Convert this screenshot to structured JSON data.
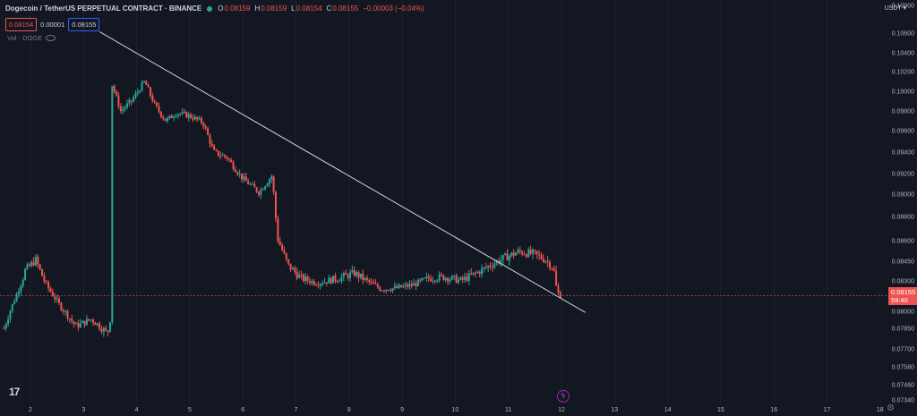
{
  "header": {
    "title": "Dogecoin / TetherUS PERPETUAL CONTRACT · BINANCE",
    "ohlc": [
      {
        "key": "O",
        "value": "0.08159"
      },
      {
        "key": "H",
        "value": "0.08159"
      },
      {
        "key": "L",
        "value": "0.08154"
      },
      {
        "key": "C",
        "value": "0.08155"
      },
      {
        "key": "",
        "value": "−0.00003 (−0.04%)"
      }
    ],
    "sell_price": "0.08154",
    "spread": "0.00001",
    "buy_price": "0.08155",
    "volume_label": "Vol · DOGE"
  },
  "currency": "USDT",
  "last_price": {
    "price": "0.08155",
    "countdown": "59:40"
  },
  "colors": {
    "up": "#26a69a",
    "down": "#ef5350",
    "background": "#131722",
    "trendline": "#d1d4dc",
    "price_line": "#ef5350"
  },
  "chart_data": {
    "type": "candlestick",
    "y_ticks": [
      "0.10800",
      "0.10600",
      "0.10400",
      "0.10200",
      "0.10000",
      "0.09800",
      "0.09600",
      "0.09400",
      "0.09200",
      "0.09000",
      "0.08800",
      "0.08600",
      "0.08450",
      "0.08300",
      "0.08000",
      "0.07850",
      "0.07700",
      "0.07580",
      "0.07460",
      "0.07340"
    ],
    "x_ticks": [
      "2",
      "3",
      "4",
      "5",
      "6",
      "7",
      "8",
      "9",
      "10",
      "11",
      "12",
      "13",
      "14",
      "15",
      "16",
      "17",
      "18"
    ],
    "ylim": [
      0.0734,
      0.108
    ],
    "last_price": 0.08155,
    "trendline": {
      "start": {
        "day": 3.3,
        "price": 0.1061
      },
      "end": {
        "day": 12.45,
        "price": 0.0799
      }
    },
    "series_close_path": [
      {
        "day": 1.5,
        "price": 0.0785
      },
      {
        "day": 1.9,
        "price": 0.0838
      },
      {
        "day": 2.1,
        "price": 0.0846
      },
      {
        "day": 2.3,
        "price": 0.0826
      },
      {
        "day": 2.55,
        "price": 0.0806
      },
      {
        "day": 2.85,
        "price": 0.0787
      },
      {
        "day": 3.15,
        "price": 0.0793
      },
      {
        "day": 3.45,
        "price": 0.0781
      },
      {
        "day": 3.5,
        "price": 0.0793
      },
      {
        "day": 3.52,
        "price": 0.101
      },
      {
        "day": 3.7,
        "price": 0.098
      },
      {
        "day": 3.9,
        "price": 0.099
      },
      {
        "day": 4.15,
        "price": 0.101
      },
      {
        "day": 4.35,
        "price": 0.0985
      },
      {
        "day": 4.55,
        "price": 0.097
      },
      {
        "day": 4.75,
        "price": 0.0978
      },
      {
        "day": 5.0,
        "price": 0.0975
      },
      {
        "day": 5.25,
        "price": 0.0968
      },
      {
        "day": 5.45,
        "price": 0.094
      },
      {
        "day": 5.7,
        "price": 0.0935
      },
      {
        "day": 6.0,
        "price": 0.0915
      },
      {
        "day": 6.3,
        "price": 0.0902
      },
      {
        "day": 6.55,
        "price": 0.0918
      },
      {
        "day": 6.65,
        "price": 0.0862
      },
      {
        "day": 6.85,
        "price": 0.0842
      },
      {
        "day": 7.1,
        "price": 0.0832
      },
      {
        "day": 7.4,
        "price": 0.0828
      },
      {
        "day": 7.8,
        "price": 0.0832
      },
      {
        "day": 8.1,
        "price": 0.0836
      },
      {
        "day": 8.4,
        "price": 0.0828
      },
      {
        "day": 8.6,
        "price": 0.0822
      },
      {
        "day": 8.9,
        "price": 0.0823
      },
      {
        "day": 9.2,
        "price": 0.0826
      },
      {
        "day": 9.5,
        "price": 0.0832
      },
      {
        "day": 9.8,
        "price": 0.0833
      },
      {
        "day": 10.1,
        "price": 0.083
      },
      {
        "day": 10.4,
        "price": 0.0836
      },
      {
        "day": 10.7,
        "price": 0.0843
      },
      {
        "day": 10.95,
        "price": 0.0848
      },
      {
        "day": 11.2,
        "price": 0.0852
      },
      {
        "day": 11.5,
        "price": 0.085
      },
      {
        "day": 11.7,
        "price": 0.0846
      },
      {
        "day": 11.85,
        "price": 0.084
      },
      {
        "day": 11.92,
        "price": 0.0818
      },
      {
        "day": 12.0,
        "price": 0.08155
      }
    ]
  }
}
